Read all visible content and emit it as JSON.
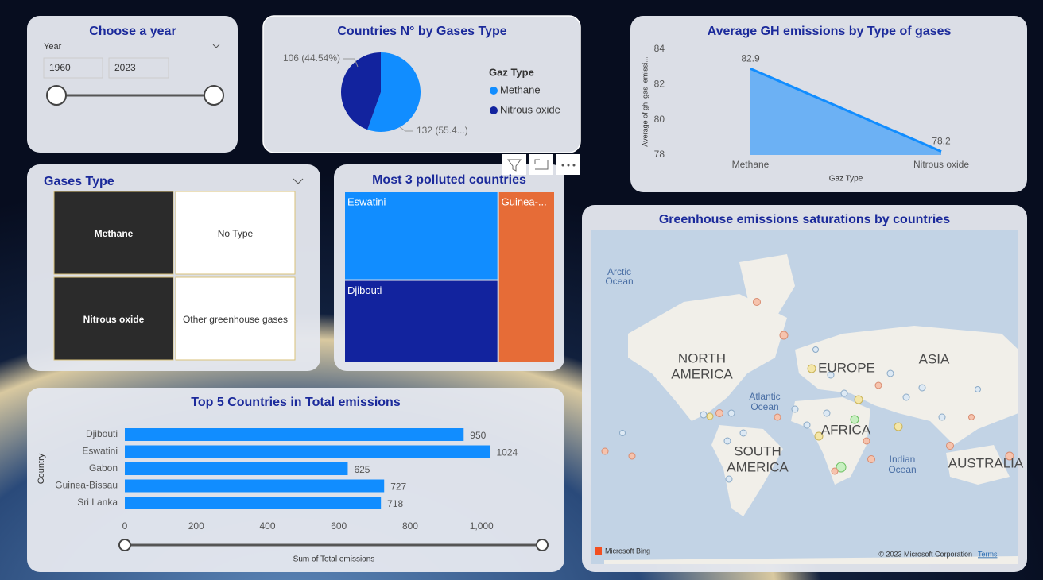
{
  "year_slicer": {
    "title": "Choose a year",
    "label": "Year",
    "start": "1960",
    "end": "2023"
  },
  "gases_type": {
    "title": "Gases Type",
    "options": [
      "Methane",
      "No Type",
      "Nitrous oxide",
      "Other greenhouse gases"
    ]
  },
  "map": {
    "title": "Greenhouse emissions saturations by countries",
    "labels": [
      "Arctic",
      "Ocean",
      "NORTH",
      "AMERICA",
      "EUROPE",
      "ASIA",
      "Atlantic",
      "Ocean",
      "AFRICA",
      "SOUTH",
      "AMERICA",
      "Indian",
      "Ocean",
      "AUSTRALIA"
    ],
    "brand": "Microsoft Bing",
    "copyright": "© 2023 Microsoft Corporation",
    "terms": "Terms"
  },
  "chart_data": [
    {
      "type": "pie",
      "title": "Countries N° by Gases Type",
      "legend_title": "Gaz Type",
      "categories": [
        "Methane",
        "Nitrous oxide"
      ],
      "values": [
        132,
        106
      ],
      "value_labels": [
        "132 (55.4...)",
        "106 (44.54%)"
      ],
      "colors": [
        "#118dff",
        "#12239e"
      ]
    },
    {
      "type": "area",
      "title": "Average GH emissions by Type of gases",
      "x_label": "Gaz Type",
      "y_label": "Average of gh_gas_emissi...",
      "categories": [
        "Methane",
        "Nitrous oxide"
      ],
      "values": [
        82.9,
        78.2
      ],
      "color": "#118dff",
      "ylim": [
        78,
        84
      ],
      "yticks": [
        78,
        80,
        82,
        84
      ]
    },
    {
      "type": "treemap",
      "title": "Most 3 polluted countries",
      "categories": [
        "Eswatini",
        "Djibouti",
        "Guinea-..."
      ],
      "values": [
        1024,
        950,
        727
      ],
      "colors": [
        "#118dff",
        "#12239e",
        "#e66c37"
      ]
    },
    {
      "type": "bar",
      "orientation": "horizontal",
      "title": "Top 5 Countries in Total emissions",
      "x_label": "Sum of Total emissions",
      "y_label": "Country",
      "categories": [
        "Djibouti",
        "Eswatini",
        "Gabon",
        "Guinea-Bissau",
        "Sri Lanka"
      ],
      "values": [
        950,
        1024,
        625,
        727,
        718
      ],
      "color": "#118dff",
      "xlim": [
        0,
        1170
      ],
      "xticks": [
        0,
        200,
        400,
        600,
        800,
        {
          "value": 1000,
          "label": "1,000"
        }
      ]
    }
  ]
}
